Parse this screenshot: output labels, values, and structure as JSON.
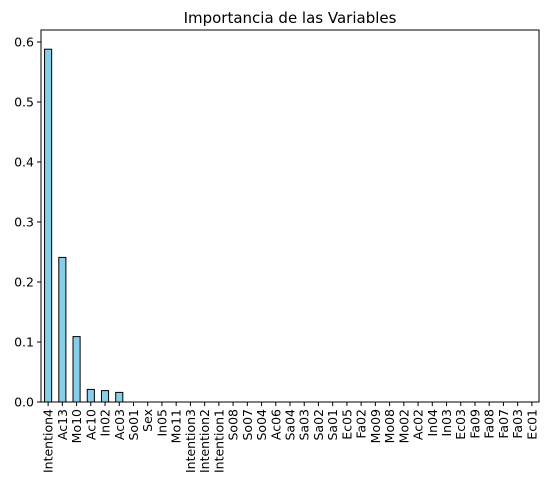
{
  "chart_data": {
    "type": "bar",
    "title": "Importancia de las Variables",
    "xlabel": "",
    "ylabel": "",
    "ylim": [
      0,
      0.62
    ],
    "yticks": [
      "0.0",
      "0.1",
      "0.2",
      "0.3",
      "0.4",
      "0.5",
      "0.6"
    ],
    "grid": false,
    "legend": "none",
    "bar_color": "#87CEEB",
    "edge_color": "#000000",
    "categories": [
      "Intention4",
      "Ac13",
      "Mo10",
      "Ac10",
      "In02",
      "Ac03",
      "So01",
      "Sex",
      "In05",
      "Mo11",
      "Intention3",
      "Intention2",
      "Intention1",
      "So08",
      "So07",
      "So04",
      "Ac06",
      "Sa04",
      "Sa03",
      "Sa02",
      "Sa01",
      "Ec05",
      "Fa02",
      "Mo09",
      "Mo08",
      "Mo02",
      "Ac02",
      "In04",
      "In03",
      "Ec03",
      "Fa09",
      "Fa08",
      "Fa07",
      "Fa03",
      "Ec01"
    ],
    "values": [
      0.588,
      0.241,
      0.109,
      0.021,
      0.019,
      0.016,
      0,
      0,
      0,
      0,
      0,
      0,
      0,
      0,
      0,
      0,
      0,
      0,
      0,
      0,
      0,
      0,
      0,
      0,
      0,
      0,
      0,
      0,
      0,
      0,
      0,
      0,
      0,
      0,
      0
    ]
  }
}
